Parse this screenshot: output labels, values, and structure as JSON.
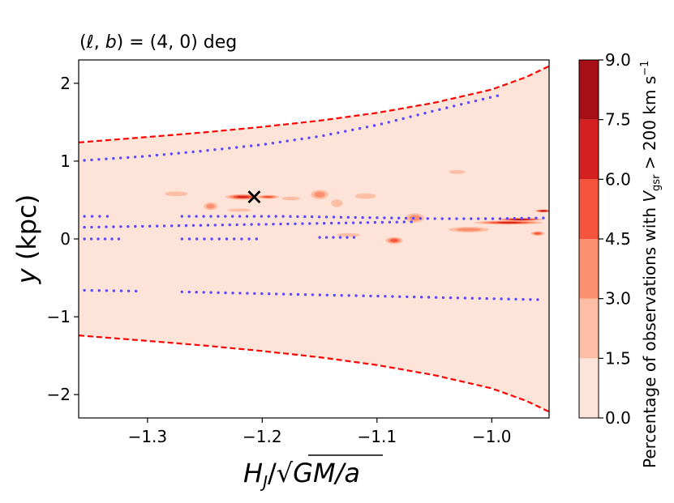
{
  "chart_data": {
    "type": "filled-contour",
    "title": "(ℓ, b) = (4, 0) deg",
    "title_parts": {
      "prefix": "(",
      "l": "ℓ",
      "mid": ", ",
      "b": "b",
      "suffix": ") = (4, 0) deg"
    },
    "xlabel": "H_J / √(GM/a)",
    "xlabel_parts": {
      "H": "H",
      "sub": "J",
      "slash": "/",
      "root": "√",
      "body": "GM/a"
    },
    "ylabel": "y (kpc)",
    "ylabel_parts": {
      "var": "y",
      "unit": " (kpc)"
    },
    "xlim": [
      -1.36,
      -0.95
    ],
    "ylim": [
      -2.3,
      2.3
    ],
    "xticks": [
      -1.3,
      -1.2,
      -1.1,
      -1.0
    ],
    "xtick_labels": [
      "−1.3",
      "−1.2",
      "−1.1",
      "−1.0"
    ],
    "yticks": [
      2,
      1,
      0,
      -1,
      -2
    ],
    "ytick_labels": [
      "2",
      "1",
      "0",
      "−1",
      "−2"
    ],
    "colorbar": {
      "label": "Percentage of observations with V_gsr > 200 km s^−1",
      "label_parts": {
        "pre": "Percentage of observations with ",
        "V": "V",
        "sub": "gsr",
        "post": " > 200 km s",
        "sup": "−1"
      },
      "levels": [
        0.0,
        1.5,
        3.0,
        4.5,
        6.0,
        7.5,
        9.0
      ],
      "level_labels": [
        "0.0",
        "1.5",
        "3.0",
        "4.5",
        "6.0",
        "7.5",
        "9.0"
      ],
      "colors": [
        "#fee4d8",
        "#fcbea5",
        "#fc8f6f",
        "#f5553c",
        "#d42020",
        "#a50f15"
      ]
    },
    "envelope": {
      "color": "#ff0000",
      "upper": {
        "x": [
          -1.36,
          -1.3,
          -1.25,
          -1.2,
          -1.15,
          -1.1,
          -1.05,
          -1.0,
          -0.97,
          -0.95
        ],
        "y": [
          1.24,
          1.31,
          1.37,
          1.44,
          1.52,
          1.62,
          1.75,
          1.92,
          2.08,
          2.22
        ]
      },
      "lower": {
        "x": [
          -1.36,
          -1.3,
          -1.25,
          -1.2,
          -1.15,
          -1.1,
          -1.05,
          -1.0,
          -0.97,
          -0.95
        ],
        "y": [
          -1.24,
          -1.31,
          -1.37,
          -1.44,
          -1.52,
          -1.62,
          -1.75,
          -1.92,
          -2.08,
          -2.22
        ]
      }
    },
    "dotted_curves": {
      "color": "#5b4bff",
      "series": [
        {
          "name": "upper",
          "x_start": -1.355,
          "x_end": -0.995,
          "y": [
            1.01,
            1.06,
            1.13,
            1.21,
            1.32,
            1.47,
            1.66,
            1.84
          ]
        },
        {
          "name": "mid-high-left",
          "x_start": -1.355,
          "x_end": -1.335,
          "y": [
            0.29,
            0.29
          ]
        },
        {
          "name": "mid-high",
          "x_start": -1.27,
          "x_end": -0.955,
          "y": [
            0.29,
            0.29,
            0.29,
            0.28,
            0.27,
            0.26,
            0.26,
            0.27
          ]
        },
        {
          "name": "mid",
          "x_start": -1.355,
          "x_end": -1.07,
          "y": [
            0.15,
            0.16,
            0.17,
            0.18,
            0.19,
            0.2,
            0.21,
            0.22
          ]
        },
        {
          "name": "mid-low-left",
          "x_start": -1.355,
          "x_end": -1.325,
          "y": [
            0.0,
            0.0
          ]
        },
        {
          "name": "mid-low",
          "x_start": -1.27,
          "x_end": -1.205,
          "y": [
            0.0,
            0.0
          ]
        },
        {
          "name": "mid-low-right",
          "x_start": -1.15,
          "x_end": -1.12,
          "y": [
            0.02,
            0.02
          ]
        },
        {
          "name": "lower-left",
          "x_start": -1.355,
          "x_end": -1.31,
          "y": [
            -0.66,
            -0.67
          ]
        },
        {
          "name": "lower",
          "x_start": -1.27,
          "x_end": -0.96,
          "y": [
            -0.68,
            -0.7,
            -0.72,
            -0.74,
            -0.76,
            -0.78
          ]
        }
      ]
    },
    "marker": {
      "symbol": "×",
      "x": -1.207,
      "y": 0.54,
      "color": "#000000"
    },
    "patches": [
      {
        "x": -1.217,
        "y": 0.54,
        "w": 0.03,
        "h": 0.07,
        "level": 4
      },
      {
        "x": -1.195,
        "y": 0.54,
        "w": 0.02,
        "h": 0.05,
        "level": 3
      },
      {
        "x": -1.245,
        "y": 0.42,
        "w": 0.012,
        "h": 0.1,
        "level": 2
      },
      {
        "x": -1.15,
        "y": 0.57,
        "w": 0.015,
        "h": 0.12,
        "level": 2
      },
      {
        "x": -1.135,
        "y": 0.46,
        "w": 0.01,
        "h": 0.1,
        "level": 1
      },
      {
        "x": -1.085,
        "y": -0.02,
        "w": 0.015,
        "h": 0.09,
        "level": 3
      },
      {
        "x": -1.067,
        "y": 0.27,
        "w": 0.016,
        "h": 0.12,
        "level": 2
      },
      {
        "x": -0.985,
        "y": 0.21,
        "w": 0.06,
        "h": 0.05,
        "level": 4
      },
      {
        "x": -0.975,
        "y": 0.25,
        "w": 0.04,
        "h": 0.04,
        "level": 5
      },
      {
        "x": -0.955,
        "y": 0.36,
        "w": 0.015,
        "h": 0.04,
        "level": 5
      },
      {
        "x": -1.02,
        "y": 0.12,
        "w": 0.035,
        "h": 0.07,
        "level": 2
      },
      {
        "x": -0.96,
        "y": 0.07,
        "w": 0.012,
        "h": 0.06,
        "level": 3
      },
      {
        "x": -1.275,
        "y": 0.58,
        "w": 0.02,
        "h": 0.06,
        "level": 1
      },
      {
        "x": -1.175,
        "y": 0.52,
        "w": 0.016,
        "h": 0.05,
        "level": 1
      },
      {
        "x": -1.11,
        "y": 0.55,
        "w": 0.018,
        "h": 0.07,
        "level": 1
      },
      {
        "x": -1.03,
        "y": 0.86,
        "w": 0.014,
        "h": 0.05,
        "level": 1
      },
      {
        "x": -1.125,
        "y": 0.05,
        "w": 0.02,
        "h": 0.05,
        "level": 1
      },
      {
        "x": -1.22,
        "y": 0.37,
        "w": 0.02,
        "h": 0.04,
        "level": 1
      }
    ]
  }
}
